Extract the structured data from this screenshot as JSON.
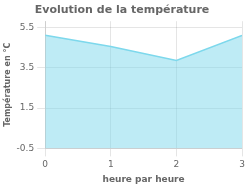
{
  "chart_data": {
    "type": "area",
    "title": "Evolution de la température",
    "xlabel": "heure par heure",
    "ylabel": "Température en °C",
    "x": [
      0,
      1,
      2,
      3
    ],
    "values": [
      5.1,
      4.55,
      3.85,
      5.1
    ],
    "color": "#7dd8ec",
    "xlim": [
      0,
      3
    ],
    "ylim": [
      -0.5,
      5.8
    ],
    "xticks": [
      0,
      1,
      2,
      3
    ],
    "yticks": [
      -0.5,
      1.5,
      3.5,
      5.5
    ],
    "grid": true
  }
}
